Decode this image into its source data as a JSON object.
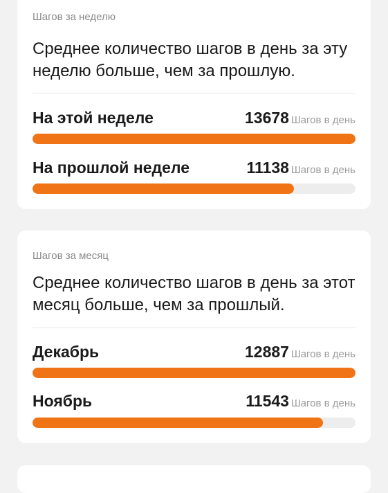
{
  "colors": {
    "accent": "#f07416",
    "track": "#ededed",
    "card": "#ffffff",
    "background": "#f2f2f2"
  },
  "week": {
    "label": "Шагов за неделю",
    "summary": "Среднее количество шагов в день за эту неделю больше, чем за прошлую.",
    "rows": [
      {
        "name": "На этой неделе",
        "value": "13678",
        "unit": "Шагов в день",
        "progress": 1.0
      },
      {
        "name": "На прошлой неделе",
        "value": "11138",
        "unit": "Шагов в день",
        "progress": 0.81
      }
    ]
  },
  "month": {
    "label": "Шагов за месяц",
    "summary": "Среднее количество шагов в день за этот месяц больше, чем за прошлый.",
    "rows": [
      {
        "name": "Декабрь",
        "value": "12887",
        "unit": "Шагов в день",
        "progress": 1.0
      },
      {
        "name": "Ноябрь",
        "value": "11543",
        "unit": "Шагов в день",
        "progress": 0.9
      }
    ]
  }
}
